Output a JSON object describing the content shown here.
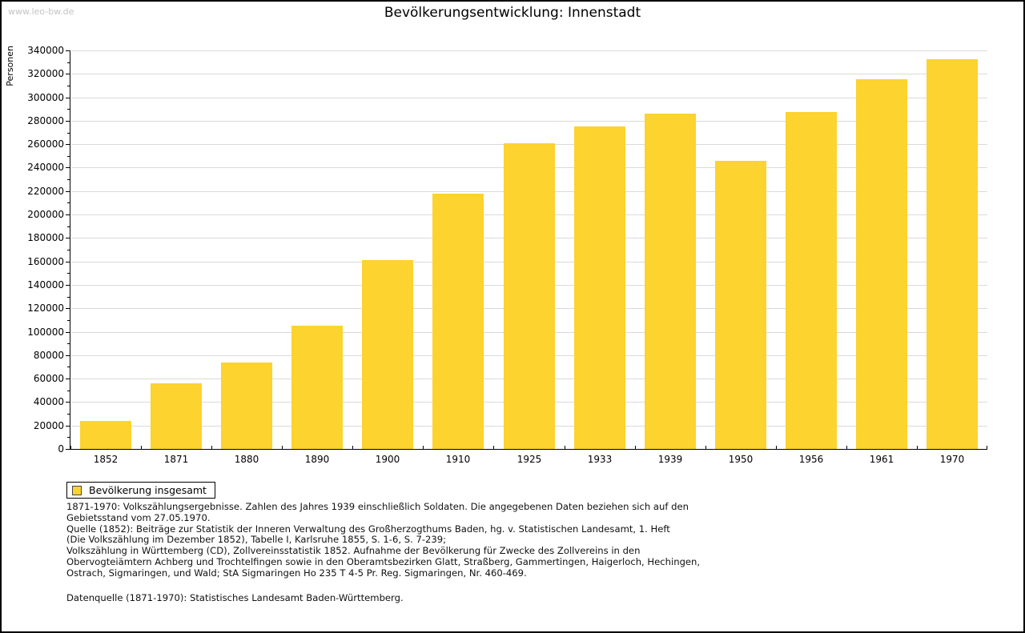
{
  "watermark": "www.leo-bw.de",
  "chart_data": {
    "type": "bar",
    "title": "Bevölkerungsentwicklung: Innenstadt",
    "ylabel": "Personen",
    "xlabel": "",
    "categories": [
      "1852",
      "1871",
      "1880",
      "1890",
      "1900",
      "1910",
      "1925",
      "1933",
      "1939",
      "1950",
      "1956",
      "1961",
      "1970"
    ],
    "values": [
      24000,
      56000,
      74000,
      105000,
      161000,
      218000,
      261000,
      275000,
      286000,
      246000,
      287500,
      315500,
      332500
    ],
    "ylim": [
      0,
      340000
    ],
    "ytick_step": 20000,
    "ytick_minor_step": 10000,
    "grid": "horizontal",
    "bar_color": "#FCD32F",
    "legend_position": "below-left",
    "legend": [
      {
        "label": "Bevölkerung insgesamt",
        "color": "#FCD32F"
      }
    ]
  },
  "footer": {
    "notes": [
      "1871-1970: Volkszählungsergebnisse. Zahlen des Jahres 1939 einschließlich Soldaten. Die angegebenen Daten beziehen sich auf den",
      "Gebietsstand vom 27.05.1970.",
      "Quelle (1852): Beiträge zur Statistik der Inneren Verwaltung des Großherzogthums Baden, hg. v. Statistischen Landesamt, 1. Heft",
      "(Die Volkszählung im Dezember 1852), Tabelle I, Karlsruhe 1855, S. 1-6, S. 7-239;",
      "Volkszählung in Württemberg (CD), Zollvereinsstatistik 1852. Aufnahme der Bevölkerung für Zwecke des Zollvereins in den",
      "Obervogteiämtern Achberg und Trochtelfingen sowie in den Oberamtsbezirken Glatt, Straßberg, Gammertingen, Haigerloch, Hechingen,",
      "Ostrach, Sigmaringen, und Wald; StA Sigmaringen Ho 235 T 4-5 Pr. Reg. Sigmaringen, Nr. 460-469."
    ],
    "datasource": "Datenquelle (1871-1970): Statistisches Landesamt Baden-Württemberg."
  }
}
